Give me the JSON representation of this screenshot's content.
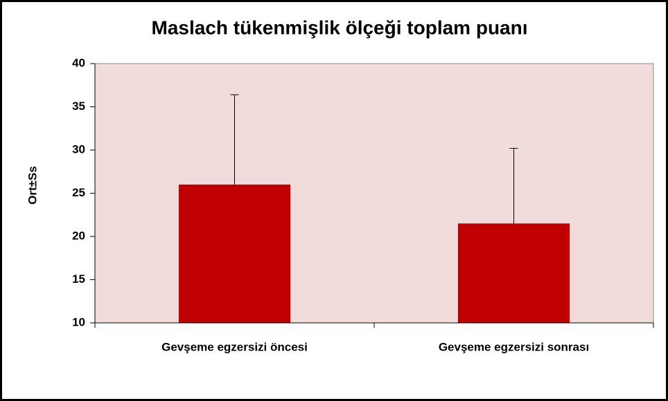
{
  "chart_data": {
    "type": "bar",
    "title": "Maslach tükenmişlik ölçeği toplam puanı",
    "ylabel": "Ort±Ss",
    "categories": [
      "Gevşeme egzersizi öncesi",
      "Gevşeme egzersizi sonrası"
    ],
    "values": [
      26,
      21.5
    ],
    "errors": [
      10.4,
      8.7
    ],
    "color": "#c00000",
    "plot_background": "#f2dcdb",
    "ylim": [
      10,
      40
    ],
    "yticks": [
      10,
      15,
      20,
      25,
      30,
      35,
      40
    ],
    "grid": false
  }
}
